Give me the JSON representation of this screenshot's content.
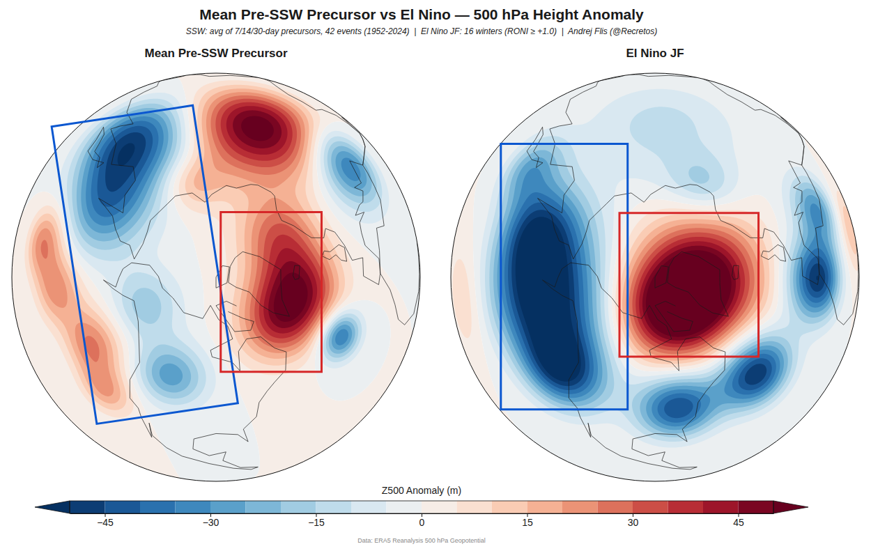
{
  "chart_data": {
    "type": "contour_map",
    "title": "Mean Pre-SSW Precursor vs El Nino — 500 hPa Height Anomaly",
    "subtitle": "SSW: avg of 7/14/30-day precursors, 42 events (1952-2024)  |  El Nino JF: 16 winters (RONI ≥ +1.0)  |  Andrej Flis (@Recretos)",
    "source": "Data: ERA5 Reanalysis 500 hPa Geopotential",
    "panels": [
      {
        "title": "Mean Pre-SSW Precursor",
        "anomalies": [
          {
            "lat": 50,
            "lon": 72,
            "value": 55,
            "radius": 13
          },
          {
            "lat": 47,
            "lon": 127,
            "value": -48,
            "radius": 12
          },
          {
            "lat": 55,
            "lon": 159,
            "value": -30,
            "radius": 10
          },
          {
            "lat": 39,
            "lon": 35,
            "value": -38,
            "radius": 9
          },
          {
            "lat": 63,
            "lon": -28,
            "value": 42,
            "radius": 9
          },
          {
            "lat": 72,
            "lon": 9,
            "value": 25,
            "radius": 8
          },
          {
            "lat": 61,
            "lon": -52,
            "value": 28,
            "radius": 8
          },
          {
            "lat": 32,
            "lon": 174,
            "value": 25,
            "radius": 7
          },
          {
            "lat": 37,
            "lon": -168,
            "value": 22,
            "radius": 7
          },
          {
            "lat": 41,
            "lon": -144,
            "value": 25,
            "radius": 7
          },
          {
            "lat": 32,
            "lon": -130,
            "value": 20,
            "radius": 6
          },
          {
            "lat": 49,
            "lon": -110,
            "value": -28,
            "radius": 7
          },
          {
            "lat": 63,
            "lon": -140,
            "value": -18,
            "radius": 7
          },
          {
            "lat": 43,
            "lon": -34,
            "value": -38,
            "radius": 5
          },
          {
            "lat": 71,
            "lon": 111,
            "value": 15,
            "radius": 6
          }
        ]
      },
      {
        "title": "El Nino JF",
        "anomalies": [
          {
            "lat": 53,
            "lon": -156,
            "value": -55,
            "radius": 13
          },
          {
            "lat": 55,
            "lon": 171,
            "value": -40,
            "radius": 10
          },
          {
            "lat": 43,
            "lon": -128,
            "value": -45,
            "radius": 9
          },
          {
            "lat": 42,
            "lon": 145,
            "value": -25,
            "radius": 8
          },
          {
            "lat": 73,
            "lon": -36,
            "value": 55,
            "radius": 12
          },
          {
            "lat": 70,
            "lon": -79,
            "value": 45,
            "radius": 10
          },
          {
            "lat": 37,
            "lon": -8,
            "value": -50,
            "radius": 8
          },
          {
            "lat": 40,
            "lon": -50,
            "value": -50,
            "radius": 8
          },
          {
            "lat": 40,
            "lon": -82,
            "value": -45,
            "radius": 8
          },
          {
            "lat": 35,
            "lon": 17,
            "value": -30,
            "radius": 7
          },
          {
            "lat": 52,
            "lon": 87,
            "value": -12,
            "radius": 15
          },
          {
            "lat": 68,
            "lon": 52,
            "value": -15,
            "radius": 7
          },
          {
            "lat": 12,
            "lon": 12,
            "value": 15,
            "radius": 8
          },
          {
            "lat": 15,
            "lon": -171,
            "value": 10,
            "radius": 10
          }
        ]
      }
    ],
    "colorbar": {
      "label": "Z500 Anomaly (m)",
      "range": [
        -50,
        50
      ],
      "levels": [
        -50,
        -45,
        -40,
        -35,
        -30,
        -25,
        -20,
        -15,
        -10,
        -5,
        0,
        5,
        10,
        15,
        20,
        25,
        30,
        35,
        40,
        45,
        50
      ],
      "ticks": [
        {
          "value": -45,
          "label": "−45"
        },
        {
          "value": -30,
          "label": "−30"
        },
        {
          "value": -15,
          "label": "−15"
        },
        {
          "value": 0,
          "label": "0"
        },
        {
          "value": 15,
          "label": "15"
        },
        {
          "value": 30,
          "label": "30"
        },
        {
          "value": 45,
          "label": "45"
        }
      ]
    }
  }
}
